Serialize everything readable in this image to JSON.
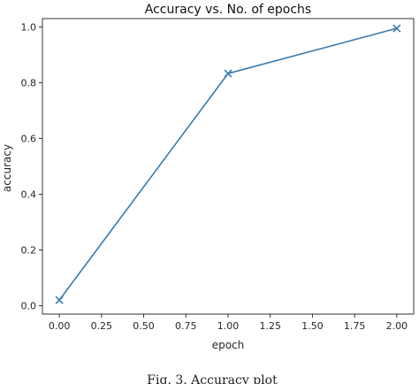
{
  "chart_data": {
    "type": "line",
    "title": "Accuracy vs. No. of epochs",
    "xlabel": "epoch",
    "ylabel": "accuracy",
    "x": [
      0,
      1,
      2
    ],
    "series": [
      {
        "values": [
          0.02,
          0.833,
          0.995
        ],
        "color": "#3a7bb0",
        "marker": "x"
      }
    ],
    "xlim": [
      -0.1,
      2.1
    ],
    "ylim": [
      -0.03,
      1.03
    ],
    "xticks": [
      0.0,
      0.25,
      0.5,
      0.75,
      1.0,
      1.25,
      1.5,
      1.75,
      2.0
    ],
    "xtick_labels": [
      "0.00",
      "0.25",
      "0.50",
      "0.75",
      "1.00",
      "1.25",
      "1.50",
      "1.75",
      "2.00"
    ],
    "yticks": [
      0.0,
      0.2,
      0.4,
      0.6,
      0.8,
      1.0
    ],
    "ytick_labels": [
      "0.0",
      "0.2",
      "0.4",
      "0.6",
      "0.8",
      "1.0"
    ],
    "grid": false,
    "legend": "none"
  },
  "caption": "Fig. 3.   Accuracy plot"
}
